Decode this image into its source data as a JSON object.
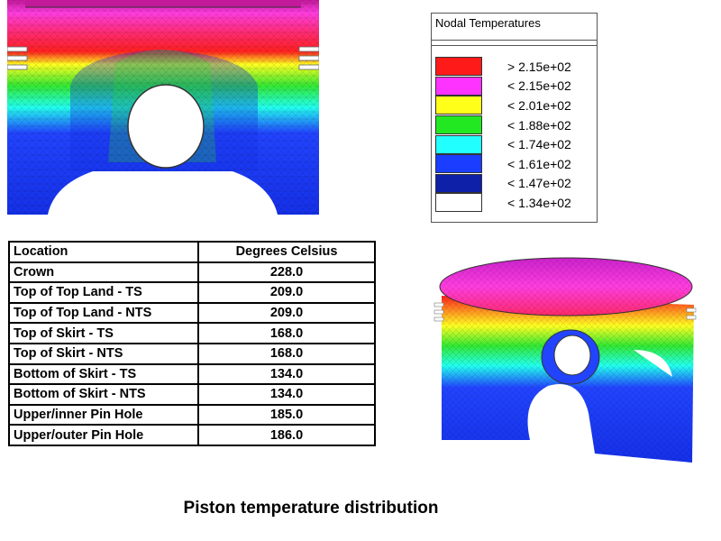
{
  "legend": {
    "title": "Nodal Temperatures",
    "items": [
      {
        "label": "> 2.15e+02",
        "color": "#ff1a1a"
      },
      {
        "label": "< 2.15e+02",
        "color": "#ff33ff"
      },
      {
        "label": "< 2.01e+02",
        "color": "#ffff1a"
      },
      {
        "label": "< 1.88e+02",
        "color": "#22e822"
      },
      {
        "label": "< 1.74e+02",
        "color": "#22ffff"
      },
      {
        "label": "< 1.61e+02",
        "color": "#1a3dff"
      },
      {
        "label": "< 1.47e+02",
        "color": "#0e1fa8"
      },
      {
        "label": "< 1.34e+02",
        "color": "#ffffff"
      }
    ]
  },
  "table": {
    "headers": [
      "Location",
      "Degrees Celsius"
    ],
    "rows": [
      [
        "Crown",
        "228.0"
      ],
      [
        "Top of Top Land - TS",
        "209.0"
      ],
      [
        "Top of Top Land - NTS",
        "209.0"
      ],
      [
        "Top of Skirt - TS",
        "168.0"
      ],
      [
        "Top of Skirt - NTS",
        "168.0"
      ],
      [
        "Bottom of Skirt - TS",
        "134.0"
      ],
      [
        "Bottom of Skirt - NTS",
        "134.0"
      ],
      [
        "Upper/inner Pin Hole",
        "185.0"
      ],
      [
        "Upper/outer Pin Hole",
        "186.0"
      ]
    ]
  },
  "caption": "Piston temperature distribution"
}
